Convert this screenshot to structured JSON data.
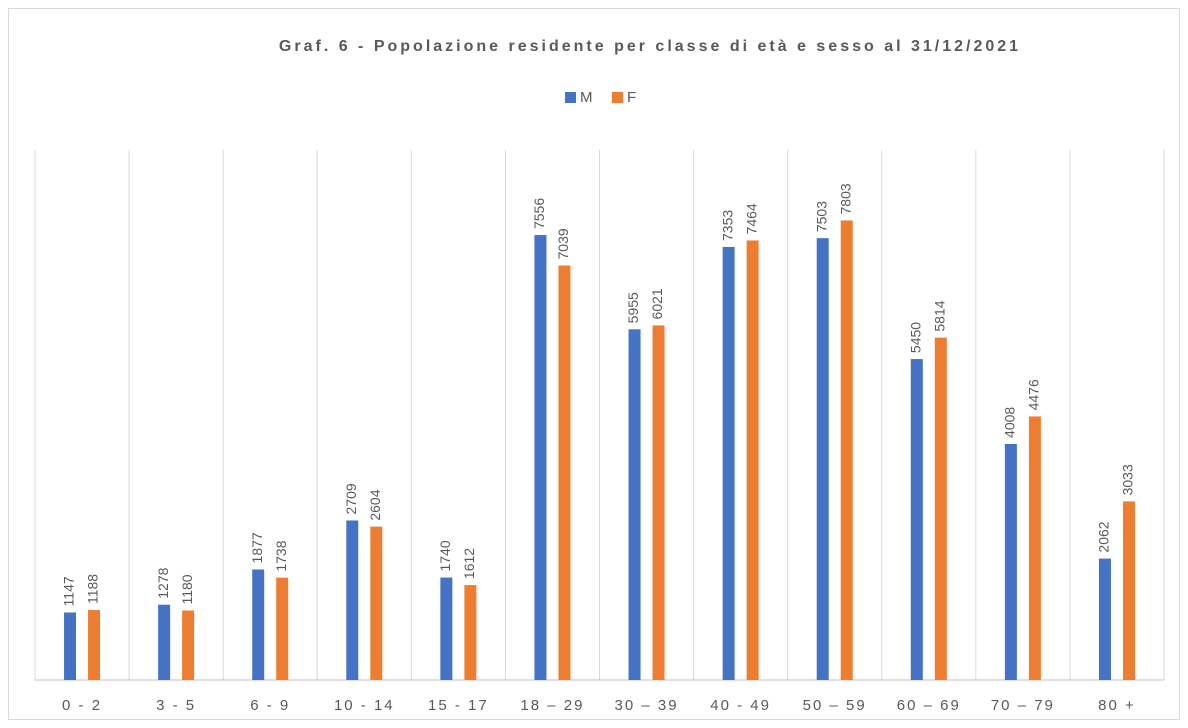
{
  "chart_data": {
    "type": "bar",
    "title": "Graf. 6 - Popolazione residente per classe di età e sesso al 31/12/2021",
    "categories": [
      "0 - 2",
      "3 - 5",
      "6 - 9",
      "10 - 14",
      "15 - 17",
      "18 – 29",
      "30 – 39",
      "40 - 49",
      "50 – 59",
      "60 – 69",
      "70 – 79",
      "80 +"
    ],
    "series": [
      {
        "name": "M",
        "color": "#4472c4",
        "values": [
          1147,
          1278,
          1877,
          2709,
          1740,
          7556,
          5955,
          7353,
          7503,
          5450,
          4008,
          2062
        ]
      },
      {
        "name": "F",
        "color": "#ed7d31",
        "values": [
          1188,
          1180,
          1738,
          2604,
          1612,
          7039,
          6021,
          7464,
          7803,
          5814,
          4476,
          3033
        ]
      }
    ],
    "ylim": [
      0,
      9000
    ],
    "legend": "top"
  }
}
